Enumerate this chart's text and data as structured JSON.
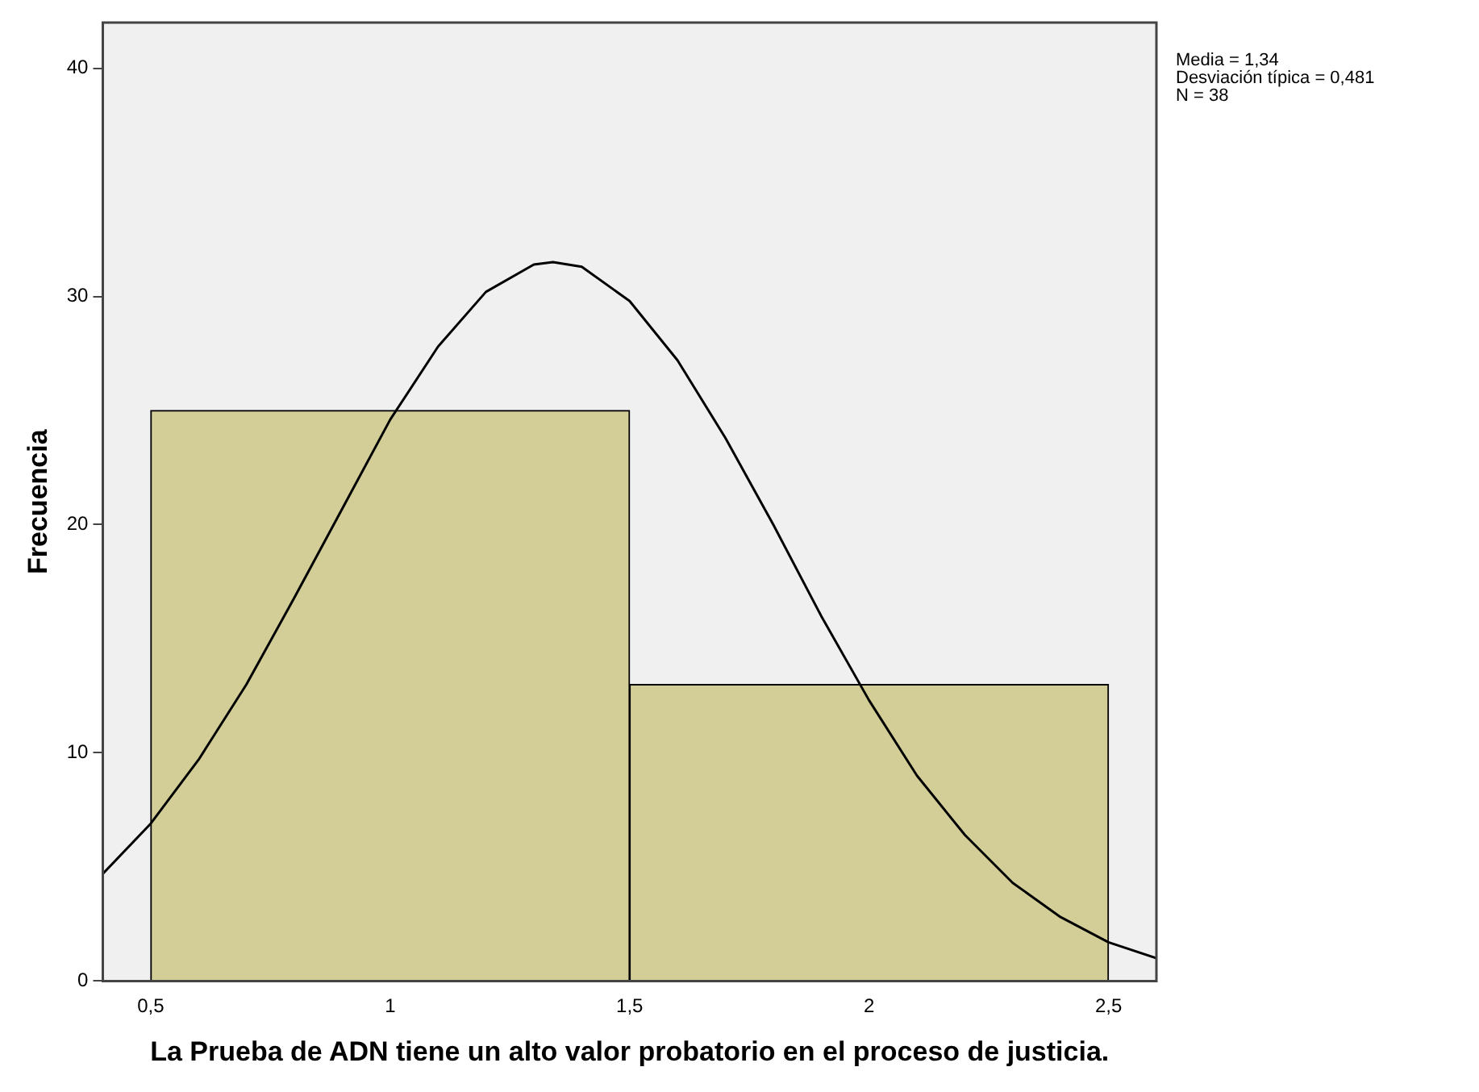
{
  "chart_data": {
    "type": "histogram",
    "xlabel": "La Prueba de ADN tiene un alto valor probatorio en el proceso de justicia.",
    "ylabel": "Frecuencia",
    "bins": [
      0.5,
      1.5,
      2.5
    ],
    "values": [
      25,
      13
    ],
    "color": "#d3ce97",
    "series": [
      {
        "type": "line",
        "color": "#000000",
        "x": [
          0.4,
          0.5,
          0.6,
          0.7,
          0.8,
          0.9,
          1.0,
          1.1,
          1.2,
          1.3,
          1.34,
          1.4,
          1.5,
          1.6,
          1.7,
          1.8,
          1.9,
          2.0,
          2.1,
          2.2,
          2.3,
          2.4,
          2.5,
          2.6
        ],
        "values": [
          4.7,
          6.9,
          9.7,
          13.0,
          16.8,
          20.7,
          24.6,
          27.8,
          30.2,
          31.4,
          31.5,
          31.3,
          29.8,
          27.2,
          23.8,
          20.0,
          16.0,
          12.3,
          9.0,
          6.4,
          4.3,
          2.8,
          1.7,
          1.0
        ]
      }
    ],
    "xlim": [
      0.4,
      2.6
    ],
    "xticks": [
      {
        "value": 0.5,
        "label": "0,5"
      },
      1,
      {
        "value": 1.5,
        "label": "1,5"
      },
      2,
      {
        "value": 2.5,
        "label": "2,5"
      }
    ],
    "ylim": [
      0,
      42
    ],
    "yticks": [
      0,
      10,
      20,
      30,
      40
    ],
    "grid": false,
    "legend": false,
    "annotations": [
      "Media = 1,34",
      "Desviación típica = 0,481",
      "N = 38"
    ]
  }
}
